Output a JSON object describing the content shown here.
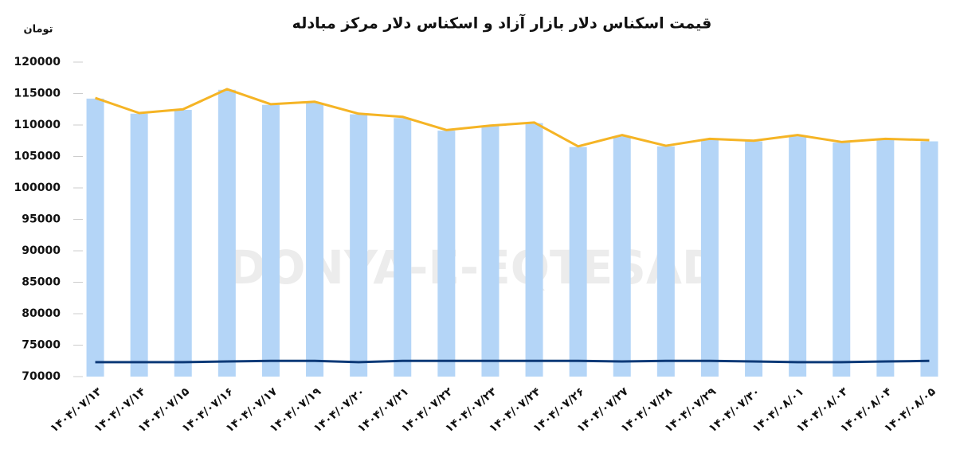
{
  "chart_data": {
    "type": "bar_line",
    "title": "قیمت اسکناس دلار بازار آزاد و اسکناس دلار مرکز مبادله",
    "y_axis_label": "تومان",
    "watermark": "DONYA-E-EQTESAD",
    "categories": [
      "۱۴۰۴/۰۷/۱۳",
      "۱۴۰۴/۰۷/۱۴",
      "۱۴۰۴/۰۷/۱۵",
      "۱۴۰۴/۰۷/۱۶",
      "۱۴۰۴/۰۷/۱۷",
      "۱۴۰۴/۰۷/۱۹",
      "۱۴۰۴/۰۷/۲۰",
      "۱۴۰۴/۰۷/۲۱",
      "۱۴۰۴/۰۷/۲۲",
      "۱۴۰۴/۰۷/۲۳",
      "۱۴۰۴/۰۷/۲۴",
      "۱۴۰۴/۰۷/۲۶",
      "۱۴۰۴/۰۷/۲۷",
      "۱۴۰۴/۰۷/۲۸",
      "۱۴۰۴/۰۷/۲۹",
      "۱۴۰۴/۰۷/۳۰",
      "۱۴۰۴/۰۸/۰۱",
      "۱۴۰۴/۰۸/۰۳",
      "۱۴۰۴/۰۸/۰۴",
      "۱۴۰۴/۰۸/۰۵"
    ],
    "series": [
      {
        "kind": "bar",
        "color": "#b4d5f7",
        "values": [
          114200,
          111800,
          112400,
          115600,
          113200,
          113500,
          111700,
          111100,
          109100,
          109800,
          110300,
          106500,
          108200,
          106600,
          107700,
          107400,
          108200,
          107200,
          107700,
          107400
        ]
      },
      {
        "kind": "line",
        "color": "#f5b425",
        "values": [
          114300,
          111900,
          112500,
          115700,
          113300,
          113700,
          111800,
          111300,
          109200,
          109900,
          110400,
          106600,
          108400,
          106700,
          107800,
          107500,
          108400,
          107300,
          107800,
          107600
        ]
      },
      {
        "kind": "line",
        "color": "#0d3a78",
        "values": [
          72300,
          72300,
          72300,
          72400,
          72500,
          72500,
          72300,
          72500,
          72500,
          72500,
          72500,
          72500,
          72400,
          72500,
          72500,
          72400,
          72300,
          72300,
          72400,
          72500
        ]
      }
    ],
    "ylim": [
      70000,
      120000
    ],
    "yticks": [
      70000,
      75000,
      80000,
      85000,
      90000,
      95000,
      100000,
      105000,
      110000,
      115000,
      120000
    ]
  }
}
